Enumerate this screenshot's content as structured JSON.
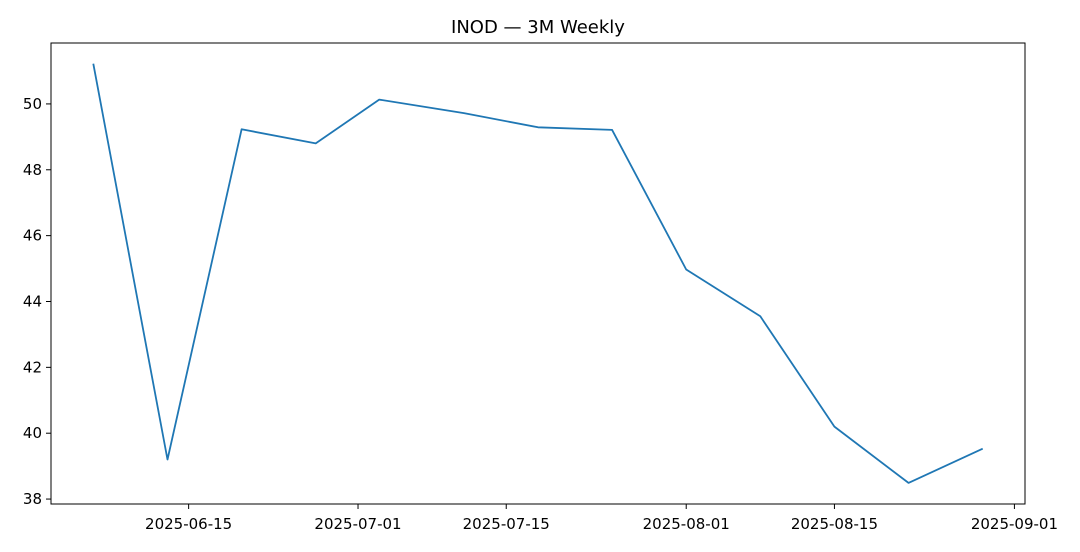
{
  "chart_data": {
    "type": "line",
    "title": "INOD — 3M Weekly",
    "xlabel": "",
    "ylabel": "",
    "x": [
      "2025-06-06",
      "2025-06-13",
      "2025-06-20",
      "2025-06-27",
      "2025-07-03",
      "2025-07-11",
      "2025-07-18",
      "2025-07-25",
      "2025-08-01",
      "2025-08-08",
      "2025-08-15",
      "2025-08-22",
      "2025-08-29"
    ],
    "series": [
      {
        "values": [
          51.22,
          39.2,
          49.23,
          48.8,
          50.13,
          49.72,
          49.29,
          49.21,
          44.97,
          43.55,
          40.2,
          38.49,
          39.53
        ],
        "color": "#1f77b4"
      }
    ],
    "xticks": [
      "2025-06-15",
      "2025-07-01",
      "2025-07-15",
      "2025-08-01",
      "2025-08-15",
      "2025-09-01"
    ],
    "yticks": [
      38,
      40,
      42,
      44,
      46,
      48,
      50
    ],
    "xlim": [
      "2025-06-02",
      "2025-09-02"
    ],
    "ylim": [
      37.85,
      51.85
    ],
    "grid": false,
    "legend": "none"
  }
}
